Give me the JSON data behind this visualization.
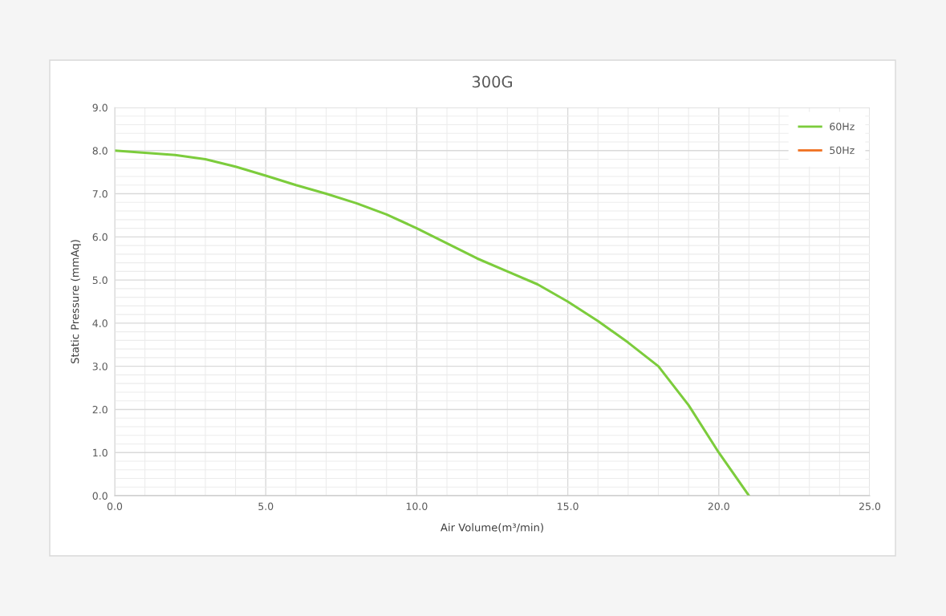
{
  "chart_data": {
    "type": "line",
    "title": "300G",
    "xlabel": "Air Volume(m³/min)",
    "ylabel": "Static Pressure (mmAq)",
    "x": [
      0,
      1,
      2,
      3,
      4,
      5,
      6,
      7,
      8,
      9,
      10,
      11,
      12,
      13,
      14,
      15,
      16,
      17,
      18,
      19,
      20,
      21
    ],
    "series": [
      {
        "name": "60Hz",
        "color": "#7ccc3c",
        "values": [
          8.0,
          7.95,
          7.9,
          7.8,
          7.63,
          7.42,
          7.2,
          7.0,
          6.78,
          6.52,
          6.2,
          5.85,
          5.5,
          5.2,
          4.9,
          4.5,
          4.05,
          3.55,
          3.0,
          2.1,
          1.0,
          0.0
        ]
      },
      {
        "name": "50Hz",
        "color": "#f07020",
        "values": [
          null,
          null,
          null,
          null,
          null,
          null,
          null,
          null,
          null,
          null,
          null,
          null,
          null,
          null,
          null,
          null,
          null,
          null,
          null,
          null,
          null,
          null
        ]
      }
    ],
    "xlim": [
      0,
      25
    ],
    "ylim": [
      0,
      9
    ],
    "xticks": [
      {
        "value": 0,
        "label": "0.0"
      },
      {
        "value": 5,
        "label": "5.0"
      },
      {
        "value": 10,
        "label": "10.0"
      },
      {
        "value": 15,
        "label": "15.0"
      },
      {
        "value": 20,
        "label": "20.0"
      },
      {
        "value": 25,
        "label": "25.0"
      }
    ],
    "yticks": [
      {
        "value": 0,
        "label": "0.0"
      },
      {
        "value": 1,
        "label": "1.0"
      },
      {
        "value": 2,
        "label": "2.0"
      },
      {
        "value": 3,
        "label": "3.0"
      },
      {
        "value": 4,
        "label": "4.0"
      },
      {
        "value": 5,
        "label": "5.0"
      },
      {
        "value": 6,
        "label": "6.0"
      },
      {
        "value": 7,
        "label": "7.0"
      },
      {
        "value": 8,
        "label": "8.0"
      },
      {
        "value": 9,
        "label": "9.0"
      }
    ],
    "grid": true,
    "legend": "top right",
    "marker": "none",
    "line_style": "solid"
  }
}
